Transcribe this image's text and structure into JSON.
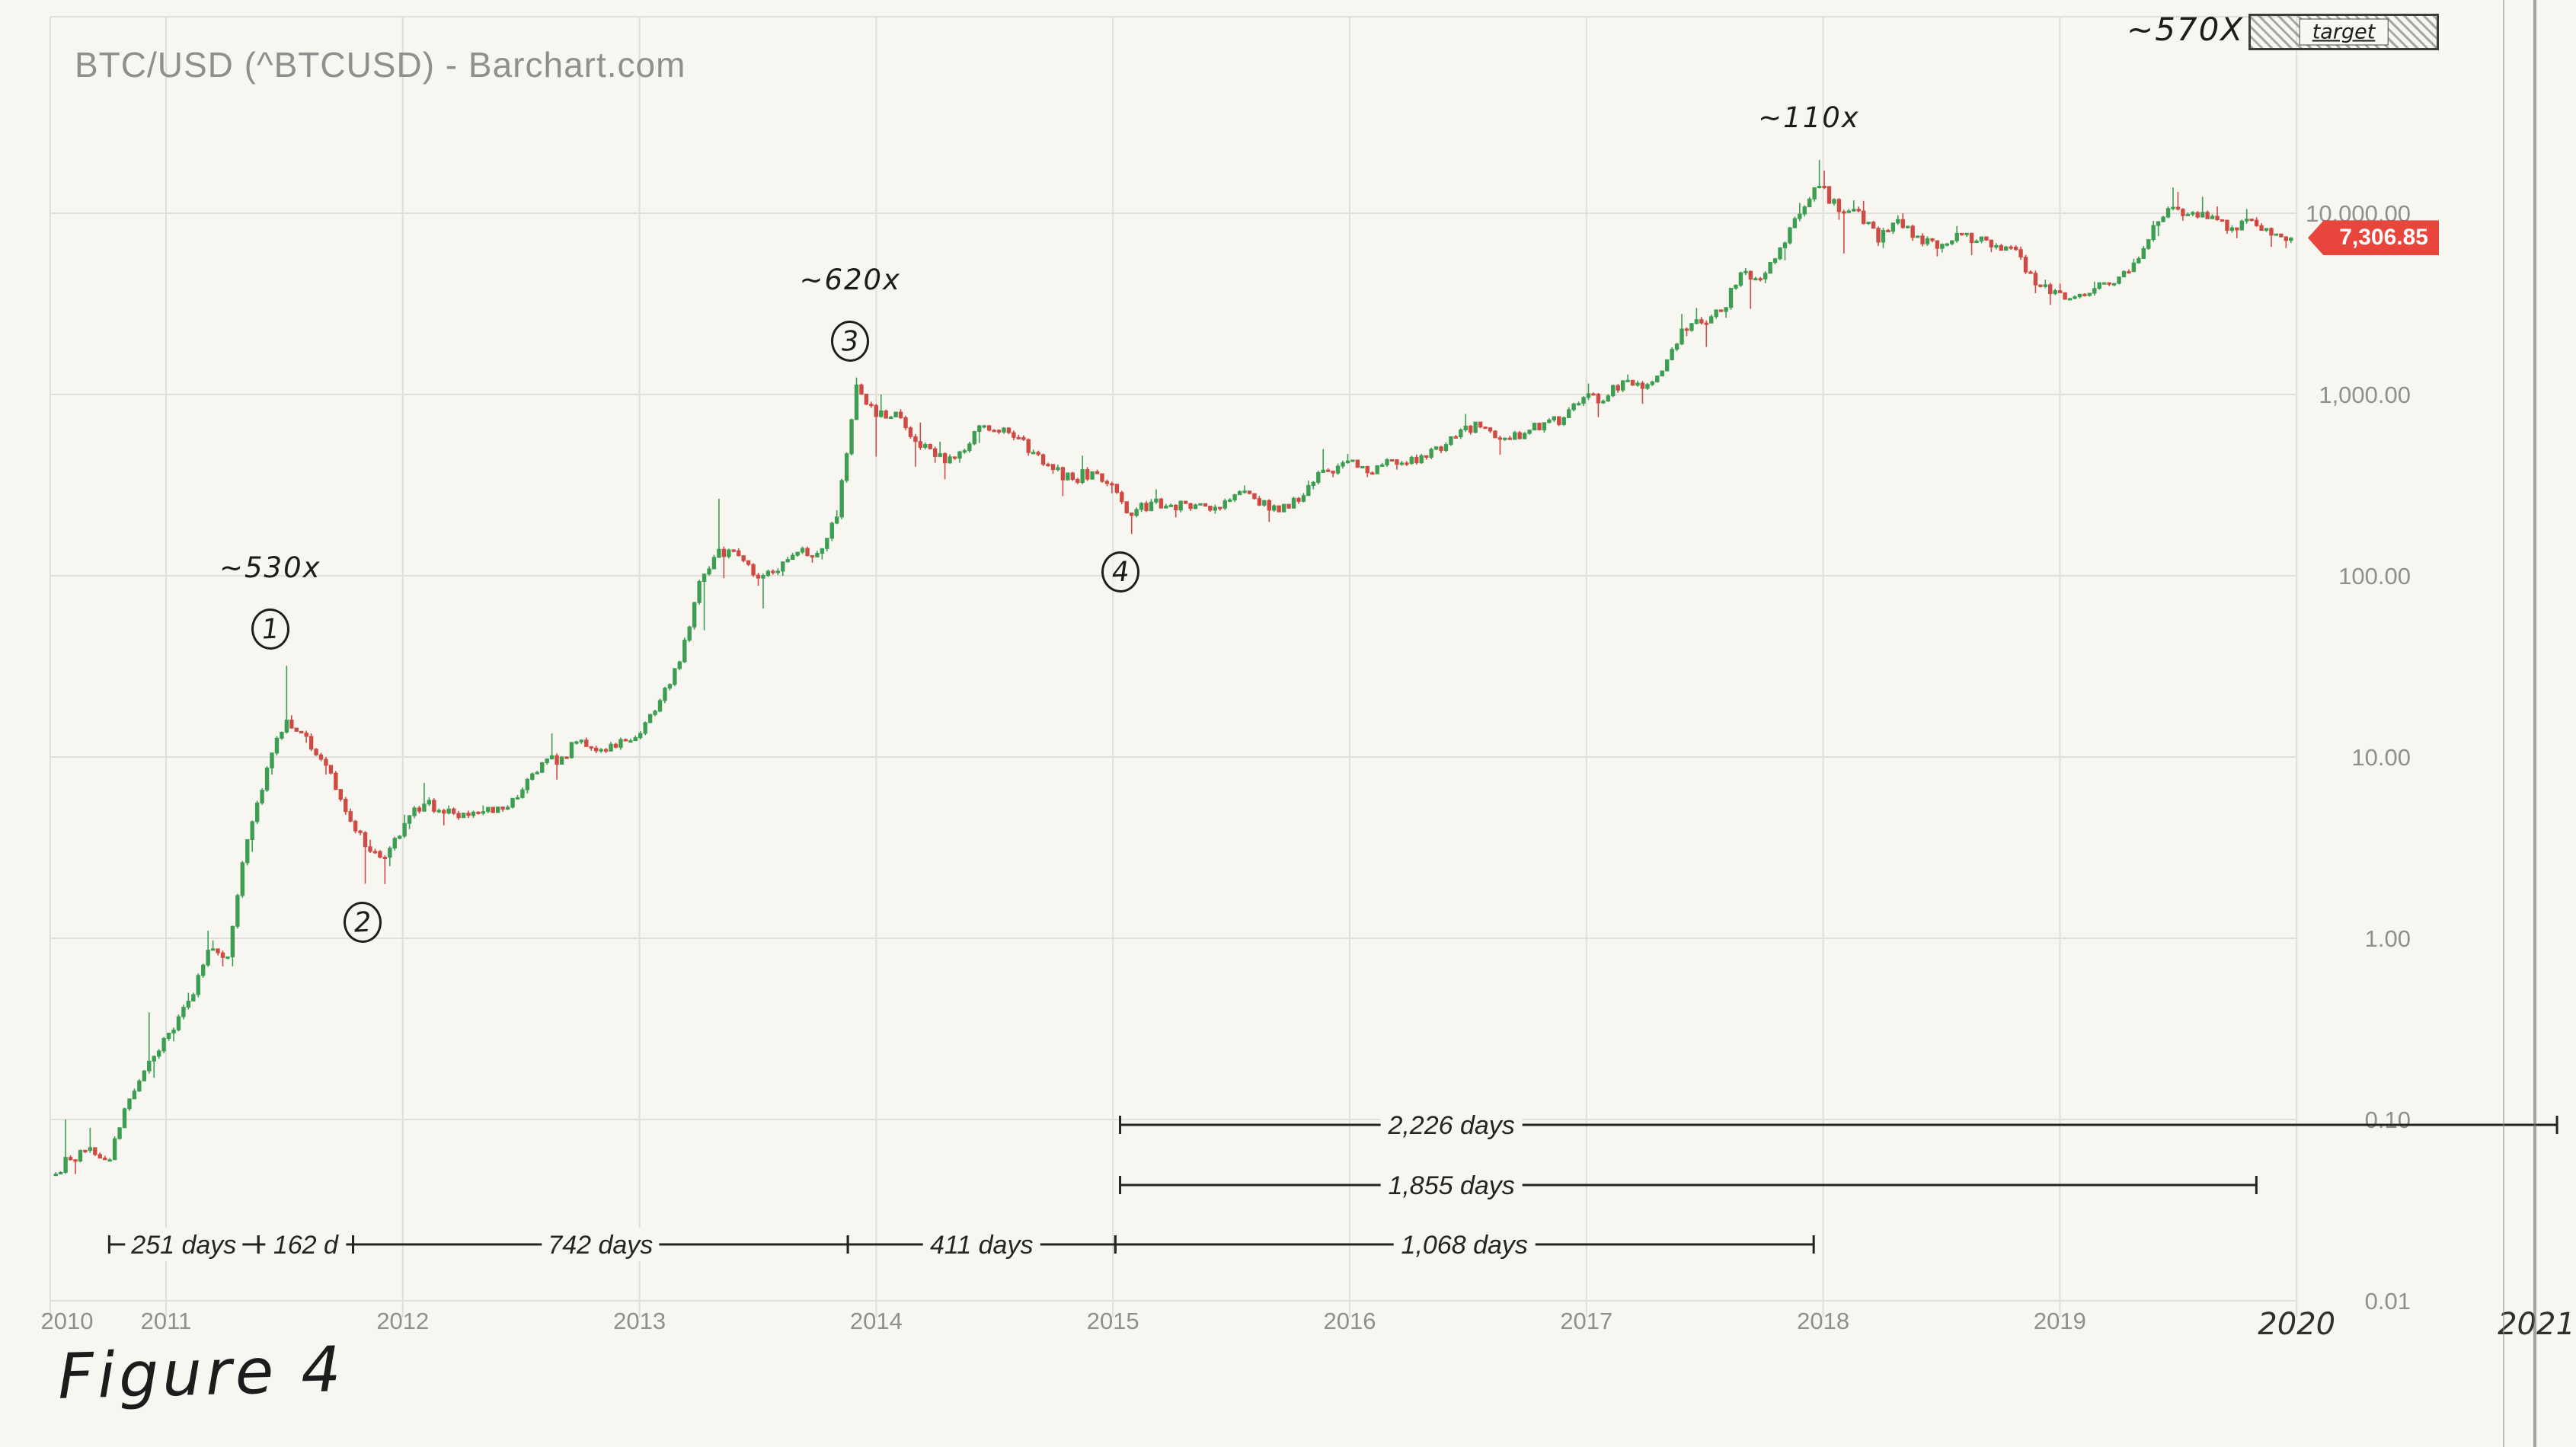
{
  "header": {
    "title": "BTC/USD (^BTCUSD) - Barchart.com"
  },
  "figure_caption": "Figure 4",
  "target_annotation": {
    "multiplier": "~570X",
    "box_label": "target"
  },
  "price_badge": {
    "text": "7,306.85",
    "value": 7306.85
  },
  "colors": {
    "up": "#3d9e52",
    "down": "#cf4a42",
    "badge_bg": "#e8463c",
    "grid": "#e0dfda",
    "axis_text": "#8f8f8f",
    "ink": "#26241f",
    "paper": "#f7f6f1"
  },
  "chart_data": {
    "type": "candlestick",
    "title": "BTC/USD (^BTCUSD) - Barchart.com",
    "symbol": "^BTCUSD",
    "y_scale": "log",
    "y_axis": {
      "tick_labels": [
        "10,000.00",
        "1,000.00",
        "100.00",
        "10.00",
        "1.00",
        "0.10",
        "0.01"
      ],
      "tick_values": [
        10000,
        1000,
        100,
        10,
        1,
        0.1,
        0.01
      ]
    },
    "x_axis": {
      "printed_year_labels": [
        "2010",
        "2011",
        "2012",
        "2013",
        "2014",
        "2015",
        "2016",
        "2017",
        "2018",
        "2019"
      ],
      "handwritten_year_labels": [
        "2020",
        "2021"
      ],
      "start": 2010.5,
      "end": 2021.2
    },
    "last_price": 7306.85,
    "cycle_annotations": [
      {
        "text": "~530x",
        "marker": "1",
        "year": 2011.44,
        "price": 31.9,
        "side": "above"
      },
      {
        "text": "",
        "marker": "2",
        "year": 2011.83,
        "price": 1.99,
        "side": "below"
      },
      {
        "text": "~620x",
        "marker": "3",
        "year": 2013.89,
        "price": 1240,
        "side": "above"
      },
      {
        "text": "",
        "marker": "4",
        "year": 2015.03,
        "price": 170,
        "side": "below"
      },
      {
        "text": "~110x",
        "marker": "",
        "year": 2017.94,
        "price": 19700,
        "side": "above"
      }
    ],
    "duration_measurements": [
      {
        "row": 0,
        "label": "2,226 days",
        "from": 2015.03,
        "to": 2021.1,
        "label_at": 2016.43
      },
      {
        "row": 1,
        "label": "1,855 days",
        "from": 2015.03,
        "to": 2019.83,
        "label_at": 2016.43
      },
      {
        "row": 2,
        "label": "251 days",
        "from": 2010.76,
        "to": 2011.39
      },
      {
        "row": 2,
        "label": "162 d",
        "from": 2011.39,
        "to": 2011.79
      },
      {
        "row": 2,
        "label": "742 days",
        "from": 2011.79,
        "to": 2013.88
      },
      {
        "row": 2,
        "label": "411 days",
        "from": 2013.88,
        "to": 2015.01
      },
      {
        "row": 2,
        "label": "1,068 days",
        "from": 2015.01,
        "to": 2017.96
      }
    ],
    "ohlc_monthly": {
      "start": "2010-07",
      "interval": "month",
      "columns": [
        "open",
        "high",
        "low",
        "close"
      ],
      "rows": [
        [
          0.05,
          0.1,
          0.05,
          0.06
        ],
        [
          0.06,
          0.09,
          0.05,
          0.07
        ],
        [
          0.07,
          0.07,
          0.06,
          0.06
        ],
        [
          0.06,
          0.13,
          0.06,
          0.13
        ],
        [
          0.13,
          0.39,
          0.13,
          0.21
        ],
        [
          0.21,
          0.3,
          0.17,
          0.3
        ],
        [
          0.3,
          0.5,
          0.27,
          0.45
        ],
        [
          0.45,
          1.1,
          0.45,
          0.86
        ],
        [
          0.86,
          0.97,
          0.7,
          0.79
        ],
        [
          0.79,
          3.5,
          0.7,
          3.5
        ],
        [
          3.5,
          8.9,
          3.0,
          8.7
        ],
        [
          8.7,
          31.9,
          8.0,
          16.0
        ],
        [
          16.0,
          17.0,
          12.0,
          13.0
        ],
        [
          13.0,
          13.5,
          8.0,
          9.0
        ],
        [
          9.0,
          9.0,
          4.8,
          5.0
        ],
        [
          5.0,
          5.2,
          2.0,
          3.2
        ],
        [
          3.2,
          3.5,
          1.99,
          2.8
        ],
        [
          2.8,
          4.8,
          2.5,
          4.3
        ],
        [
          4.3,
          7.2,
          4.0,
          5.5
        ],
        [
          5.5,
          6.0,
          4.2,
          4.9
        ],
        [
          4.9,
          5.4,
          4.5,
          4.9
        ],
        [
          4.9,
          5.4,
          4.6,
          5.0
        ],
        [
          5.0,
          5.3,
          4.9,
          5.15
        ],
        [
          5.15,
          6.8,
          5.1,
          6.6
        ],
        [
          6.6,
          9.4,
          6.3,
          9.3
        ],
        [
          9.3,
          13.5,
          7.5,
          10.0
        ],
        [
          10.0,
          12.5,
          9.8,
          12.4
        ],
        [
          12.4,
          12.8,
          10.5,
          11.0
        ],
        [
          11.0,
          12.8,
          10.5,
          12.5
        ],
        [
          12.5,
          13.9,
          12.3,
          13.5
        ],
        [
          13.5,
          21.0,
          13.2,
          20.5
        ],
        [
          20.5,
          34.0,
          19.8,
          33.5
        ],
        [
          33.5,
          95.0,
          33.0,
          93.0
        ],
        [
          93.0,
          266.0,
          50.0,
          140.0
        ],
        [
          140.0,
          145.0,
          97.0,
          129.0
        ],
        [
          129.0,
          130.0,
          88.0,
          97.0
        ],
        [
          97.0,
          110.0,
          66.0,
          106.0
        ],
        [
          106.0,
          135.0,
          100.0,
          135.0
        ],
        [
          135.0,
          145.0,
          118.0,
          133.0
        ],
        [
          133.0,
          230.0,
          123.0,
          211.0
        ],
        [
          211.0,
          1240.0,
          205.0,
          1130.0
        ],
        [
          1130.0,
          1150.0,
          455.0,
          755.0
        ],
        [
          755,
          1000,
          740,
          800
        ],
        [
          800,
          830,
          400,
          550
        ],
        [
          550,
          700,
          420,
          455
        ],
        [
          455,
          550,
          340,
          445
        ],
        [
          445,
          630,
          420,
          625
        ],
        [
          625,
          680,
          540,
          635
        ],
        [
          635,
          660,
          560,
          580
        ],
        [
          580,
          600,
          460,
          480
        ],
        [
          480,
          490,
          365,
          385
        ],
        [
          385,
          410,
          275,
          340
        ],
        [
          340,
          460,
          320,
          375
        ],
        [
          375,
          385,
          285,
          320
        ],
        [
          320,
          320,
          170,
          215
        ],
        [
          215,
          265,
          210,
          255
        ],
        [
          255,
          300,
          236,
          245
        ],
        [
          245,
          260,
          210,
          235
        ],
        [
          235,
          250,
          225,
          230
        ],
        [
          230,
          268,
          220,
          262
        ],
        [
          262,
          315,
          255,
          284
        ],
        [
          284,
          285,
          198,
          230
        ],
        [
          230,
          248,
          225,
          236
        ],
        [
          236,
          335,
          235,
          315
        ],
        [
          315,
          500,
          300,
          378
        ],
        [
          378,
          470,
          350,
          430
        ],
        [
          430,
          435,
          350,
          370
        ],
        [
          370,
          445,
          365,
          437
        ],
        [
          437,
          440,
          385,
          416
        ],
        [
          416,
          470,
          410,
          450
        ],
        [
          450,
          545,
          440,
          530
        ],
        [
          530,
          780,
          520,
          670
        ],
        [
          670,
          705,
          600,
          655
        ],
        [
          655,
          660,
          465,
          575
        ],
        [
          575,
          630,
          565,
          610
        ],
        [
          610,
          700,
          600,
          700
        ],
        [
          700,
          755,
          670,
          745
        ],
        [
          745,
          980,
          740,
          963
        ],
        [
          963,
          1150,
          750,
          920
        ],
        [
          920,
          1200,
          910,
          1190
        ],
        [
          1190,
          1290,
          890,
          1080
        ],
        [
          1080,
          1350,
          1060,
          1350
        ],
        [
          1350,
          2780,
          1340,
          2300
        ],
        [
          2300,
          3000,
          2100,
          2480
        ],
        [
          2480,
          2930,
          1830,
          2870
        ],
        [
          2870,
          4760,
          2650,
          4700
        ],
        [
          4700,
          4980,
          2970,
          4340
        ],
        [
          4340,
          6480,
          4110,
          6450
        ],
        [
          6450,
          11400,
          5500,
          9900
        ],
        [
          9900,
          19700,
          9600,
          14100
        ],
        [
          14100,
          17200,
          9200,
          10200
        ],
        [
          10200,
          11790,
          6000,
          10300
        ],
        [
          10300,
          11700,
          6600,
          6930
        ],
        [
          6930,
          9760,
          6430,
          9240
        ],
        [
          9240,
          9990,
          7040,
          7490
        ],
        [
          7490,
          7750,
          5780,
          6400
        ],
        [
          6400,
          8500,
          6070,
          7750
        ],
        [
          7750,
          7760,
          5880,
          7030
        ],
        [
          7030,
          7410,
          6100,
          6630
        ],
        [
          6630,
          6780,
          6200,
          6300
        ],
        [
          6300,
          6540,
          3620,
          4020
        ],
        [
          4020,
          4300,
          3120,
          3740
        ],
        [
          3740,
          4090,
          3350,
          3460
        ],
        [
          3460,
          4190,
          3380,
          3850
        ],
        [
          3850,
          4140,
          3790,
          4100
        ],
        [
          4100,
          5600,
          4050,
          5320
        ],
        [
          5320,
          9070,
          5270,
          8560
        ],
        [
          8560,
          13880,
          7480,
          10800
        ],
        [
          10800,
          13130,
          9090,
          10090
        ],
        [
          10090,
          12320,
          9320,
          9630
        ],
        [
          9630,
          10900,
          7700,
          8310
        ],
        [
          8310,
          10540,
          7290,
          9150
        ],
        [
          9150,
          9520,
          6520,
          7570
        ],
        [
          7570,
          7690,
          6430,
          7306.85
        ]
      ]
    }
  }
}
